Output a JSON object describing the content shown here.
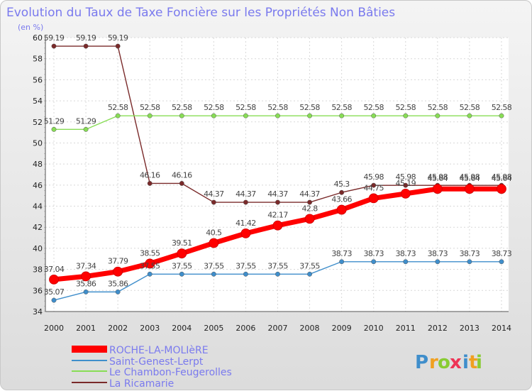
{
  "chart_data": {
    "type": "line",
    "title": "Evolution du Taux de Taxe Foncière sur les Propriétés Non Bâties",
    "subtitle": "(en %)",
    "xlabel": "",
    "ylabel": "(en %)",
    "ylim": [
      34,
      60
    ],
    "yticks": [
      34,
      36,
      38,
      40,
      42,
      44,
      46,
      48,
      50,
      52,
      54,
      56,
      58,
      60
    ],
    "grid": true,
    "legend_position": "bottom-left",
    "categories": [
      "2000",
      "2001",
      "2002",
      "2003",
      "2004",
      "2005",
      "2006",
      "2007",
      "2008",
      "2009",
      "2010",
      "2011",
      "2012",
      "2013",
      "2014"
    ],
    "series": [
      {
        "name": "ROCHE-LA-MOLIèRE",
        "color": "#ff0000",
        "values": [
          37.04,
          37.34,
          37.79,
          38.55,
          39.51,
          40.5,
          41.42,
          42.17,
          42.8,
          43.66,
          44.75,
          45.19,
          45.64,
          45.64,
          45.64
        ],
        "labels": [
          "37.04",
          "37.34",
          "37.79",
          "38.55",
          "39.51",
          "40.5",
          "41.42",
          "42.17",
          "42.8",
          "43.66",
          "44.75",
          "45.19",
          "45.64",
          "45.64",
          "45.64"
        ]
      },
      {
        "name": "Saint-Genest-Lerpt",
        "color": "#3f8ecb",
        "values": [
          35.07,
          35.86,
          35.86,
          37.55,
          37.55,
          37.55,
          37.55,
          37.55,
          37.55,
          38.73,
          38.73,
          38.73,
          38.73,
          38.73,
          38.73
        ],
        "labels": [
          "35.07",
          "35.86",
          "35.86",
          "37.55",
          "37.55",
          "37.55",
          "37.55",
          "37.55",
          "37.55",
          "38.73",
          "38.73",
          "38.73",
          "38.73",
          "38.73",
          "38.73"
        ]
      },
      {
        "name": "Le Chambon-Feugerolles",
        "color": "#88dd55",
        "values": [
          51.29,
          51.29,
          52.58,
          52.58,
          52.58,
          52.58,
          52.58,
          52.58,
          52.58,
          52.58,
          52.58,
          52.58,
          52.58,
          52.58,
          52.58
        ],
        "labels": [
          "51.29",
          "51.29",
          "52.58",
          "52.58",
          "52.58",
          "52.58",
          "52.58",
          "52.58",
          "52.58",
          "52.58",
          "52.58",
          "52.58",
          "52.58",
          "52.58",
          "52.58"
        ]
      },
      {
        "name": "La Ricamarie",
        "color": "#7a2a2a",
        "values": [
          59.19,
          59.19,
          59.19,
          46.16,
          46.16,
          44.37,
          44.37,
          44.37,
          44.37,
          45.3,
          45.98,
          45.98,
          45.98,
          45.98,
          45.98
        ],
        "labels": [
          "59.19",
          "59.19",
          "59.19",
          "46.16",
          "46.16",
          "44.37",
          "44.37",
          "44.37",
          "44.37",
          "45.3",
          "45.98",
          "45.98",
          "45.98",
          "45.98",
          "45.98"
        ]
      }
    ]
  },
  "logo": {
    "letters": [
      "P",
      "r",
      "o",
      "x",
      "i",
      "t",
      "i"
    ],
    "colors": [
      "#3f8ecb",
      "#f0a020",
      "#88cc33",
      "#ee3355",
      "#3f8ecb",
      "#f0a020",
      "#88cc33"
    ]
  }
}
